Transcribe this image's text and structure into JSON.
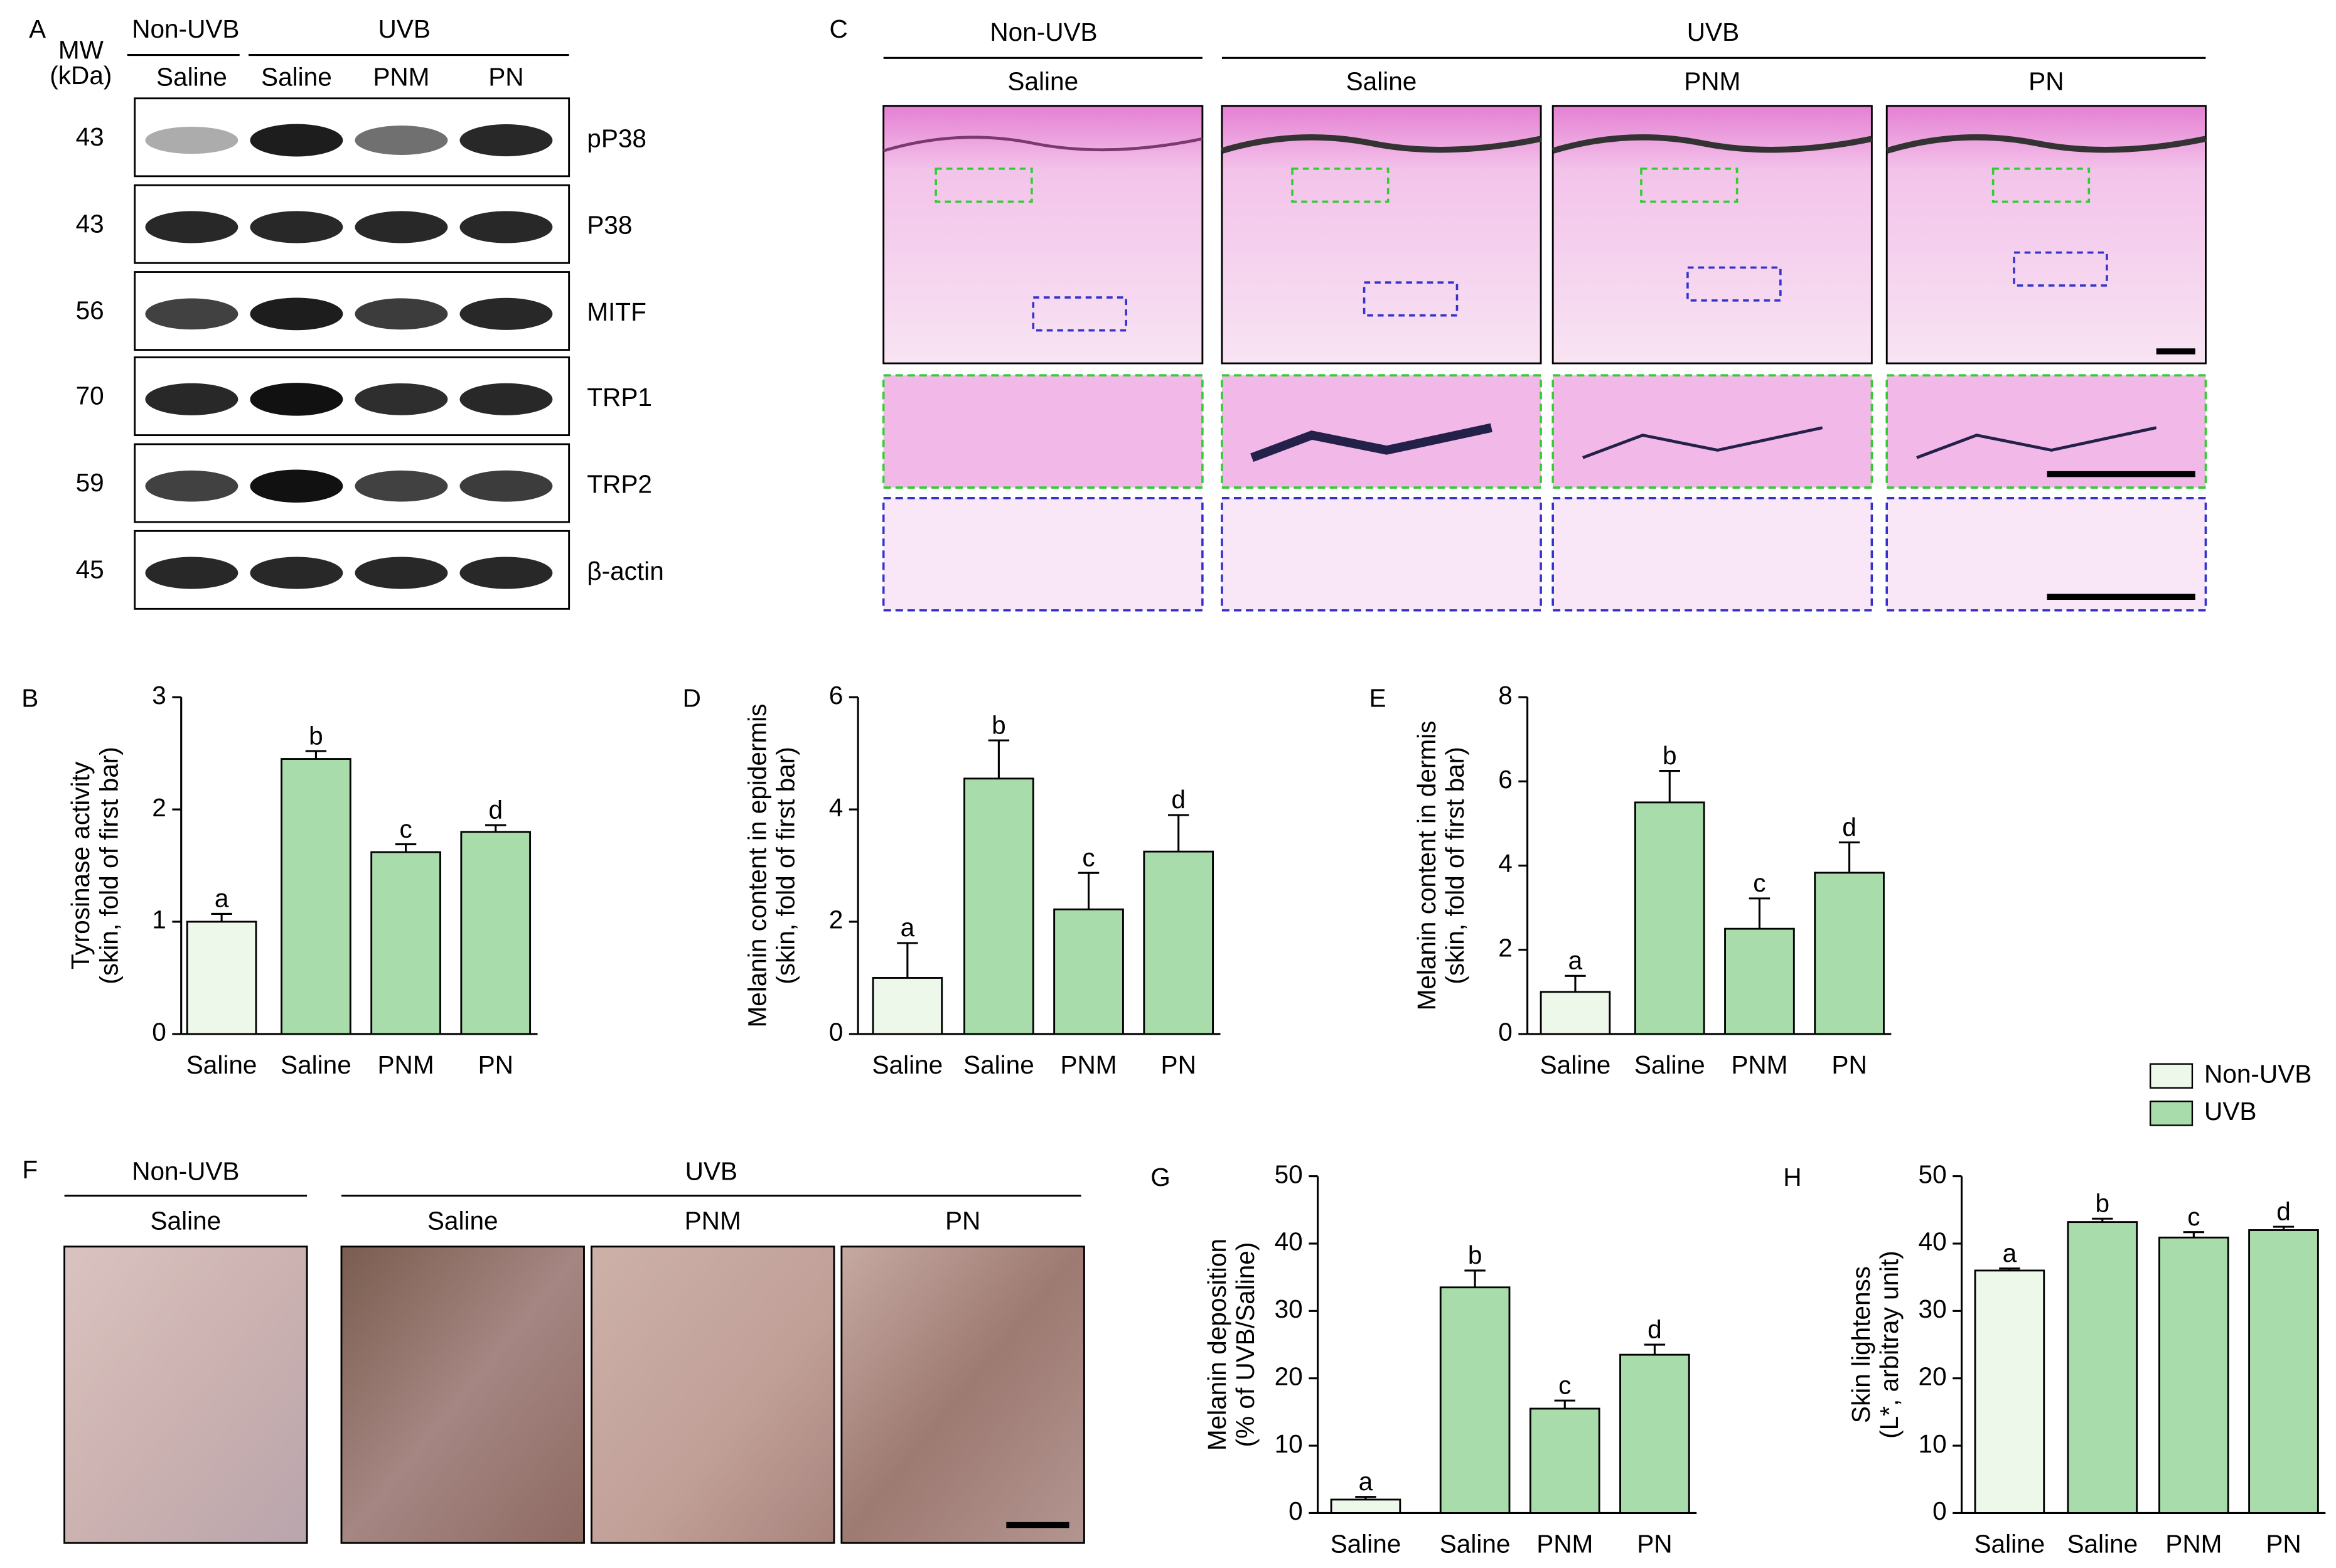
{
  "blot": {
    "label": "A",
    "mw_label": "MW",
    "mw_unit": "(kDa)",
    "groups": [
      "Non-UVB",
      "UVB"
    ],
    "lanes": [
      "Saline",
      "Saline",
      "PNM",
      "PN"
    ],
    "rows": [
      {
        "mw": 43,
        "protein": "pP38"
      },
      {
        "mw": 43,
        "protein": "P38"
      },
      {
        "mw": 56,
        "protein": "MITF"
      },
      {
        "mw": 70,
        "protein": "TRP1"
      },
      {
        "mw": 59,
        "protein": "TRP2"
      },
      {
        "mw": 45,
        "protein": "β-actin"
      }
    ]
  },
  "histology": {
    "label": "C",
    "groups": [
      "Non-UVB",
      "UVB"
    ],
    "lanes": [
      "Saline",
      "Saline",
      "PNM",
      "PN"
    ]
  },
  "photos": {
    "label": "F",
    "groups": [
      "Non-UVB",
      "UVB"
    ],
    "lanes": [
      "Saline",
      "Saline",
      "PNM",
      "PN"
    ]
  },
  "legend": [
    {
      "name": "Non-UVB",
      "color": "#eef8ea"
    },
    {
      "name": "UVB",
      "color": "#a8dcaa"
    }
  ],
  "chart_data": [
    {
      "type": "bar",
      "label": "B",
      "ylabel": "Tyrosinase activity",
      "ylabel_sub": "(skin, fold of first bar)",
      "categories": [
        "Saline",
        "Saline",
        "PNM",
        "PN"
      ],
      "values": [
        1.0,
        2.45,
        1.62,
        1.8
      ],
      "errors": [
        0.07,
        0.07,
        0.07,
        0.06
      ],
      "annotations": [
        "a",
        "b",
        "c",
        "d"
      ],
      "colors": [
        "#eef8ea",
        "#a8dcaa",
        "#a8dcaa",
        "#a8dcaa"
      ],
      "ylim": [
        0,
        3
      ],
      "yticks": [
        0,
        1,
        2,
        3
      ]
    },
    {
      "type": "bar",
      "label": "D",
      "ylabel": "Melanin content in epidermis",
      "ylabel_sub": "(skin, fold of first bar)",
      "categories": [
        "Saline",
        "Saline",
        "PNM",
        "PN"
      ],
      "values": [
        1.0,
        4.55,
        2.22,
        3.25
      ],
      "errors": [
        0.62,
        0.68,
        0.65,
        0.65
      ],
      "annotations": [
        "a",
        "b",
        "c",
        "d"
      ],
      "colors": [
        "#eef8ea",
        "#a8dcaa",
        "#a8dcaa",
        "#a8dcaa"
      ],
      "ylim": [
        0,
        6
      ],
      "yticks": [
        0,
        2,
        4,
        6
      ]
    },
    {
      "type": "bar",
      "label": "E",
      "ylabel": "Melanin content in dermis",
      "ylabel_sub": "(skin, fold of first bar)",
      "categories": [
        "Saline",
        "Saline",
        "PNM",
        "PN"
      ],
      "values": [
        1.0,
        5.5,
        2.5,
        3.83
      ],
      "errors": [
        0.38,
        0.75,
        0.72,
        0.72
      ],
      "annotations": [
        "a",
        "b",
        "c",
        "d"
      ],
      "colors": [
        "#eef8ea",
        "#a8dcaa",
        "#a8dcaa",
        "#a8dcaa"
      ],
      "ylim": [
        0,
        8
      ],
      "yticks": [
        0,
        2,
        4,
        6,
        8
      ]
    },
    {
      "type": "bar",
      "label": "G",
      "ylabel": "Melanin deposition",
      "ylabel_sub": "(% of UVB/Saline)",
      "categories": [
        "Saline",
        "Saline",
        "PNM",
        "PN"
      ],
      "values": [
        2,
        33.5,
        15.5,
        23.5
      ],
      "errors": [
        0.4,
        2.5,
        1.2,
        1.5
      ],
      "annotations": [
        "a",
        "b",
        "c",
        "d"
      ],
      "colors": [
        "#eef8ea",
        "#a8dcaa",
        "#a8dcaa",
        "#a8dcaa"
      ],
      "ylim": [
        0,
        50
      ],
      "yticks": [
        0,
        10,
        20,
        30,
        40,
        50
      ]
    },
    {
      "type": "bar",
      "label": "H",
      "ylabel": "Skin lightenss",
      "ylabel_sub": "(L*, arbitray unit)",
      "categories": [
        "Saline",
        "Saline",
        "PNM",
        "PN"
      ],
      "values": [
        36,
        43.2,
        40.9,
        42
      ],
      "errors": [
        0.3,
        0.5,
        0.8,
        0.5
      ],
      "annotations": [
        "a",
        "b",
        "c",
        "d"
      ],
      "colors": [
        "#eef8ea",
        "#a8dcaa",
        "#a8dcaa",
        "#a8dcaa"
      ],
      "ylim": [
        0,
        50
      ],
      "yticks": [
        0,
        10,
        20,
        30,
        40,
        50
      ]
    }
  ]
}
